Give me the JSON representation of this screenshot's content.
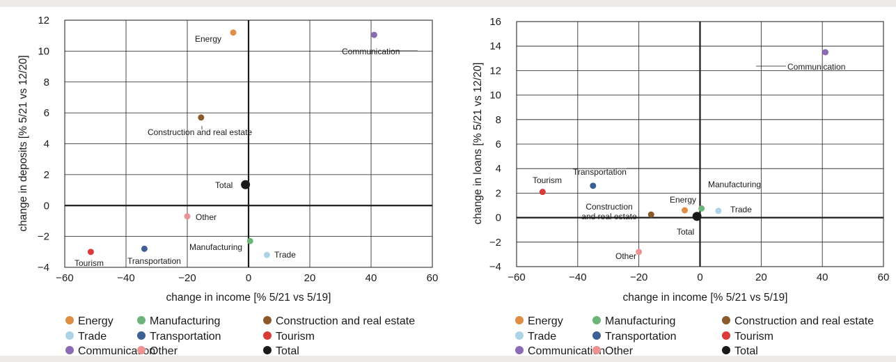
{
  "colors": {
    "Energy": "#e08d45",
    "Manufacturing": "#6bb578",
    "Construction and real estate": "#8b5a2b",
    "Trade": "#aad4e6",
    "Transportation": "#3d5f94",
    "Tourism": "#d93a3a",
    "Communication": "#8b6bb3",
    "Other": "#ec9393",
    "Total": "#1a1a1a"
  },
  "legend_items": [
    "Energy",
    "Manufacturing",
    "Construction and real estate",
    "Trade",
    "Transportation",
    "Tourism",
    "Communication",
    "Other",
    "Total"
  ],
  "chart_data": [
    {
      "type": "scatter",
      "xlabel": "change in income [% 5/21 vs 5/19]",
      "ylabel": "change in deposits [% 5/21 vs 12/20]",
      "xlim": [
        -60,
        60
      ],
      "ylim": [
        -4,
        12
      ],
      "xticks": [
        "−60",
        "−40",
        "−20",
        "0",
        "20",
        "40",
        "60"
      ],
      "yticks": [
        "−4",
        "−2",
        "0",
        "2",
        "4",
        "6",
        "8",
        "10",
        "12"
      ],
      "grid": true,
      "points": [
        {
          "name": "Energy",
          "label": "Energy",
          "x": -5,
          "y": 11.2
        },
        {
          "name": "Communication",
          "label": "Communication",
          "x": 41,
          "y": 11.05
        },
        {
          "name": "Construction and real estate",
          "label": "Construction and real estate",
          "x": -15.5,
          "y": 5.7
        },
        {
          "name": "Total",
          "label": "Total",
          "x": -1,
          "y": 1.35
        },
        {
          "name": "Other",
          "label": "Other",
          "x": -20,
          "y": -0.7
        },
        {
          "name": "Manufacturing",
          "label": "Manufacturing",
          "x": 0.5,
          "y": -2.3
        },
        {
          "name": "Trade",
          "label": "Trade",
          "x": 6,
          "y": -3.2
        },
        {
          "name": "Tourism",
          "label": "Tourism",
          "x": -51.5,
          "y": -3
        },
        {
          "name": "Transportation",
          "label": "Transportation",
          "x": -34,
          "y": -2.8
        }
      ]
    },
    {
      "type": "scatter",
      "xlabel": "change in income [% 5/21 vs 5/19]",
      "ylabel": "change in loans [% 5/21 vs 12/20]",
      "xlim": [
        -60,
        60
      ],
      "ylim": [
        -4,
        16
      ],
      "xticks": [
        "−60",
        "−40",
        "−20",
        "0",
        "20",
        "40",
        "60"
      ],
      "yticks": [
        "−4",
        "−2",
        "0",
        "2",
        "4",
        "6",
        "8",
        "10",
        "12",
        "14",
        "16"
      ],
      "grid": true,
      "points": [
        {
          "name": "Communication",
          "label": "Communication",
          "x": 41,
          "y": 13.5
        },
        {
          "name": "Tourism",
          "label": "Tourism",
          "x": -51.5,
          "y": 2.1
        },
        {
          "name": "Transportation",
          "label": "Transportation",
          "x": -35,
          "y": 2.6
        },
        {
          "name": "Manufacturing",
          "label": "Manufacturing",
          "x": 0.5,
          "y": 0.75
        },
        {
          "name": "Energy",
          "label": "Energy",
          "x": -5,
          "y": 0.6
        },
        {
          "name": "Trade",
          "label": "Trade",
          "x": 6,
          "y": 0.55
        },
        {
          "name": "Construction and real estate",
          "label": "Construction\nand real estate",
          "x": -16,
          "y": 0.25
        },
        {
          "name": "Total",
          "label": "Total",
          "x": -1,
          "y": 0.1
        },
        {
          "name": "Other",
          "label": "Other",
          "x": -20,
          "y": -2.8
        }
      ]
    }
  ]
}
